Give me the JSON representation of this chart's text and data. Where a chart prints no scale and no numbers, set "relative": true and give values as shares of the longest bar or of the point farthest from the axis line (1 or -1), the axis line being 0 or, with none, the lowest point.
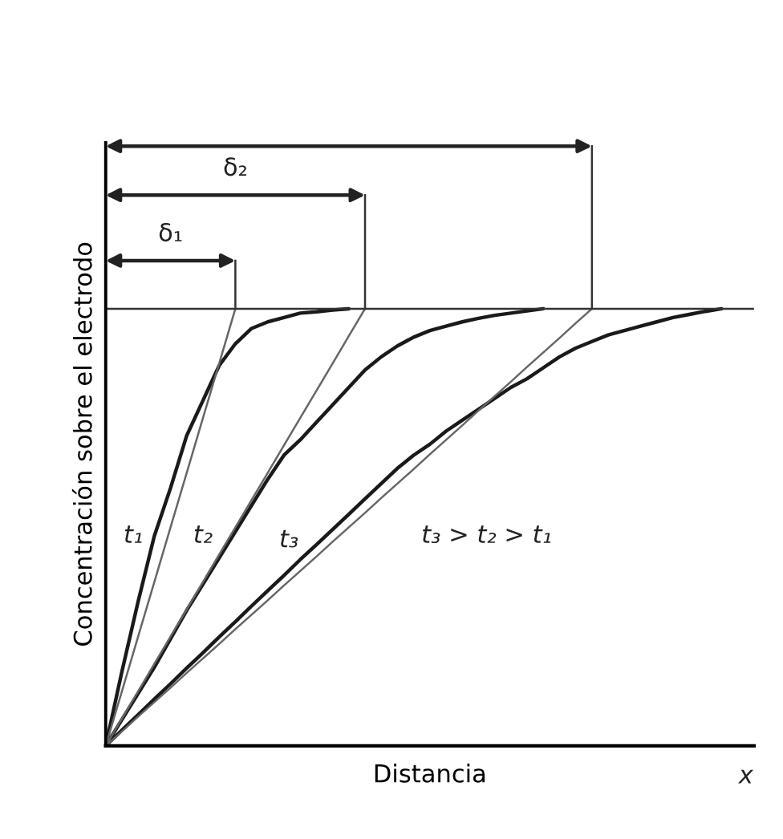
{
  "chart_data": {
    "type": "line",
    "relative": true,
    "xlabel": "Distancia",
    "ylabel": "Concentración sobre el electrodo",
    "annotations": [
      "t₁",
      "t₂",
      "t₃",
      "t₃ > t₂ > t₁",
      "δ₁",
      "δ₂",
      "x"
    ],
    "categories": [
      null,
      null,
      null,
      null,
      null,
      null,
      null,
      null,
      null,
      null,
      null,
      null,
      null,
      null,
      null,
      null,
      null,
      null,
      null,
      null,
      null,
      null,
      null,
      null,
      null,
      null,
      null,
      null,
      null,
      null,
      null,
      null,
      null,
      null,
      null,
      null,
      null,
      null,
      null,
      null,
      null
    ],
    "series": [
      {
        "color": "#1a1a1a",
        "values": [
          0,
          0.17,
          0.33,
          0.48,
          0.59,
          0.71,
          0.79,
          0.87,
          0.92,
          0.955,
          0.97,
          0.98,
          0.99,
          0.993,
          0.997,
          1,
          null,
          null,
          null,
          null,
          null,
          null,
          null,
          null,
          null,
          null,
          null,
          null,
          null,
          null,
          null,
          null,
          null,
          null,
          null,
          null,
          null,
          null,
          null,
          null,
          null
        ]
      },
      {
        "color": "#1a1a1a",
        "values": [
          0,
          0.06,
          0.12,
          0.18,
          0.245,
          0.31,
          0.37,
          0.43,
          0.49,
          0.55,
          0.61,
          0.665,
          0.7,
          0.74,
          0.78,
          0.82,
          0.86,
          0.89,
          0.915,
          0.935,
          0.95,
          0.96,
          0.97,
          0.978,
          0.985,
          0.99,
          0.995,
          1,
          null,
          null,
          null,
          null,
          null,
          null,
          null,
          null,
          null,
          null,
          null,
          null,
          null
        ]
      },
      {
        "color": "#1a1a1a",
        "values": [
          0,
          0.036,
          0.071,
          0.107,
          0.142,
          0.178,
          0.213,
          0.249,
          0.284,
          0.32,
          0.355,
          0.39,
          0.426,
          0.46,
          0.495,
          0.53,
          0.565,
          0.6,
          0.635,
          0.665,
          0.69,
          0.72,
          0.745,
          0.77,
          0.795,
          0.82,
          0.84,
          0.865,
          0.89,
          0.91,
          0.925,
          0.94,
          0.95,
          0.96,
          0.97,
          0.98,
          0.987,
          0.994,
          1,
          null,
          null
        ]
      },
      {
        "color": "#666666",
        "values": [
          0,
          0.125,
          0.25,
          0.375,
          0.5,
          0.625,
          0.75,
          0.875,
          1,
          null,
          null,
          null,
          null,
          null,
          null,
          null,
          null,
          null,
          null,
          null,
          null,
          null,
          null,
          null,
          null,
          null,
          null,
          null,
          null,
          null,
          null,
          null,
          null,
          null,
          null,
          null,
          null,
          null,
          null,
          null,
          null
        ]
      },
      {
        "color": "#666666",
        "values": [
          0,
          0.0625,
          0.125,
          0.1875,
          0.25,
          0.3125,
          0.375,
          0.4375,
          0.5,
          0.5625,
          0.625,
          0.6875,
          0.75,
          0.8125,
          0.875,
          0.9375,
          1,
          null,
          null,
          null,
          null,
          null,
          null,
          null,
          null,
          null,
          null,
          null,
          null,
          null,
          null,
          null,
          null,
          null,
          null,
          null,
          null,
          null,
          null,
          null,
          null
        ]
      },
      {
        "color": "#666666",
        "values": [
          0,
          0.033,
          0.067,
          0.1,
          0.133,
          0.167,
          0.2,
          0.233,
          0.267,
          0.3,
          0.333,
          0.367,
          0.4,
          0.433,
          0.467,
          0.5,
          0.533,
          0.567,
          0.6,
          0.633,
          0.667,
          0.7,
          0.733,
          0.767,
          0.8,
          0.833,
          0.867,
          0.9,
          0.933,
          0.967,
          1,
          null,
          null,
          null,
          null,
          null,
          null,
          null,
          null,
          null,
          null
        ]
      }
    ],
    "ref_lines": [
      {
        "axis": "y",
        "value": 1,
        "color": "#333333"
      }
    ],
    "marker": "none",
    "line_style": "solid",
    "tick_labels": false
  }
}
